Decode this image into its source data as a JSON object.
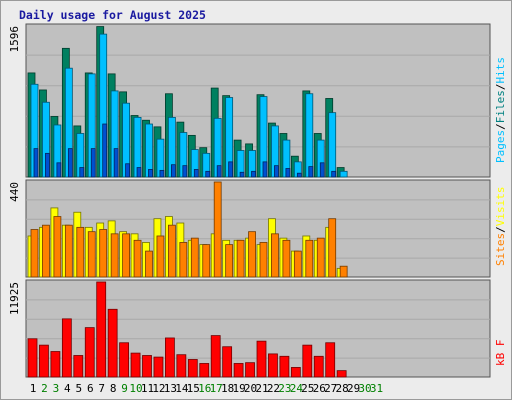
{
  "title": "Daily usage for August 2025",
  "colors": {
    "bg": "#ececec",
    "plot_bg": "#c0c0c0",
    "pages": "#00c0ff",
    "files": "#008080",
    "hits": "#00c0ff",
    "sites": "#ff8000",
    "visits": "#ffff00",
    "kbf": "#ff0000",
    "weekend_day": "#008000",
    "weekday": "#000000"
  },
  "chart_data": [
    {
      "type": "bar",
      "panel": "hits",
      "max_label": "1596",
      "ylim": [
        0,
        1596
      ],
      "legend": [
        {
          "key": "pages",
          "label": "Pages"
        },
        {
          "key": "sep1",
          "label": "/"
        },
        {
          "key": "files",
          "label": "Files"
        },
        {
          "key": "sep2",
          "label": "/"
        },
        {
          "key": "hits",
          "label": "Hits"
        }
      ],
      "categories": [
        "1",
        "2",
        "3",
        "4",
        "5",
        "6",
        "7",
        "8",
        "9",
        "10",
        "11",
        "12",
        "13",
        "14",
        "15",
        "16",
        "17",
        "18",
        "19",
        "20",
        "21",
        "22",
        "23",
        "24",
        "25",
        "26",
        "27",
        "28",
        "29",
        "30",
        "31"
      ],
      "series": [
        {
          "name": "Hits",
          "values": [
            1100,
            920,
            640,
            1360,
            540,
            1100,
            1590,
            1090,
            900,
            650,
            600,
            530,
            880,
            580,
            440,
            310,
            940,
            860,
            390,
            350,
            870,
            570,
            460,
            220,
            910,
            460,
            830,
            100,
            0,
            0,
            0
          ]
        },
        {
          "name": "Files",
          "values": [
            980,
            790,
            550,
            1150,
            460,
            1090,
            1510,
            910,
            780,
            630,
            560,
            400,
            630,
            470,
            290,
            250,
            620,
            840,
            280,
            280,
            850,
            540,
            390,
            160,
            880,
            390,
            680,
            60,
            0,
            0,
            0
          ]
        },
        {
          "name": "Pages",
          "values": [
            300,
            250,
            150,
            300,
            100,
            300,
            560,
            300,
            140,
            100,
            80,
            70,
            130,
            120,
            80,
            60,
            120,
            160,
            50,
            60,
            160,
            120,
            90,
            40,
            110,
            150,
            60,
            0,
            0,
            0,
            0
          ]
        }
      ]
    },
    {
      "type": "bar",
      "panel": "visits",
      "max_label": "440",
      "ylim": [
        0,
        440
      ],
      "legend": [
        {
          "key": "sites",
          "label": "Sites"
        },
        {
          "key": "sep",
          "label": "/"
        },
        {
          "key": "visits",
          "label": "Visits"
        }
      ],
      "categories": [
        "1",
        "2",
        "3",
        "4",
        "5",
        "6",
        "7",
        "8",
        "9",
        "10",
        "11",
        "12",
        "13",
        "14",
        "15",
        "16",
        "17",
        "18",
        "19",
        "20",
        "21",
        "22",
        "23",
        "24",
        "25",
        "26",
        "27",
        "28",
        "29",
        "30",
        "31"
      ],
      "series": [
        {
          "name": "Visits",
          "values": [
            190,
            230,
            320,
            240,
            300,
            230,
            250,
            260,
            210,
            200,
            160,
            270,
            280,
            250,
            170,
            150,
            200,
            170,
            170,
            180,
            150,
            270,
            180,
            120,
            190,
            170,
            230,
            40,
            0,
            0,
            0
          ]
        },
        {
          "name": "Sites",
          "values": [
            220,
            240,
            280,
            240,
            230,
            210,
            220,
            200,
            200,
            170,
            120,
            190,
            240,
            160,
            180,
            150,
            440,
            150,
            170,
            210,
            160,
            200,
            170,
            120,
            170,
            180,
            270,
            50,
            0,
            0,
            0
          ]
        }
      ]
    },
    {
      "type": "bar",
      "panel": "kbytes",
      "max_label": "11925",
      "ylim": [
        0,
        11925
      ],
      "legend": [
        {
          "key": "kbf",
          "label": "kB F"
        }
      ],
      "categories": [
        "1",
        "2",
        "3",
        "4",
        "5",
        "6",
        "7",
        "8",
        "9",
        "10",
        "11",
        "12",
        "13",
        "14",
        "15",
        "16",
        "17",
        "18",
        "19",
        "20",
        "21",
        "22",
        "23",
        "24",
        "25",
        "26",
        "27",
        "28",
        "29",
        "30",
        "31"
      ],
      "series": [
        {
          "name": "kB F",
          "values": [
            4800,
            4000,
            3200,
            7300,
            2700,
            6200,
            11925,
            8500,
            4300,
            3000,
            2700,
            2500,
            4900,
            2800,
            2200,
            1700,
            5200,
            3800,
            1700,
            1800,
            4500,
            2900,
            2600,
            1200,
            4000,
            2600,
            4300,
            800,
            0,
            0,
            0
          ]
        }
      ]
    }
  ],
  "day_labels": [
    "1",
    "2",
    "3",
    "4",
    "5",
    "6",
    "7",
    "8",
    "9",
    "10",
    "11",
    "12",
    "13",
    "14",
    "15",
    "16",
    "17",
    "18",
    "19",
    "20",
    "21",
    "22",
    "23",
    "24",
    "25",
    "26",
    "27",
    "28",
    "29",
    "30",
    "31"
  ],
  "weekend_days": [
    2,
    3,
    9,
    10,
    16,
    17,
    23,
    24,
    30,
    31
  ]
}
